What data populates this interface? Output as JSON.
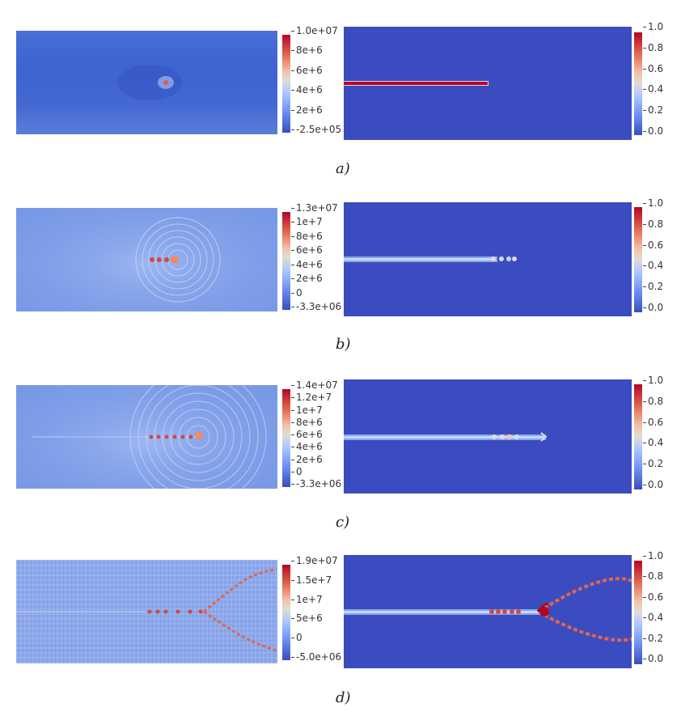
{
  "panels": [
    {
      "caption": "a)",
      "stress_ticks": [
        "1.0e+07",
        "8e+6",
        "6e+6",
        "4e+6",
        "2e+6",
        "-2.5e+05"
      ],
      "phase_ticks": [
        "1.0",
        "0.8",
        "0.6",
        "0.4",
        "0.2",
        "0.0"
      ]
    },
    {
      "caption": "b)",
      "stress_ticks": [
        "1.3e+07",
        "1e+7",
        "8e+6",
        "6e+6",
        "4e+6",
        "2e+6",
        "0",
        "-3.3e+06"
      ],
      "phase_ticks": [
        "1.0",
        "0.8",
        "0.6",
        "0.4",
        "0.2",
        "0.0"
      ]
    },
    {
      "caption": "c)",
      "stress_ticks": [
        "1.4e+07",
        "1.2e+7",
        "1e+7",
        "8e+6",
        "6e+6",
        "4e+6",
        "2e+6",
        "0",
        "-3.3e+06"
      ],
      "phase_ticks": [
        "1.0",
        "0.8",
        "0.6",
        "0.4",
        "0.2",
        "0.0"
      ]
    },
    {
      "caption": "d)",
      "stress_ticks": [
        "1.9e+07",
        "1.5e+7",
        "1e+7",
        "5e+6",
        "0",
        "-5.0e+06"
      ],
      "phase_ticks": [
        "1.0",
        "0.8",
        "0.6",
        "0.4",
        "0.2",
        "0.0"
      ]
    }
  ],
  "colors": {
    "field_blue": "#3b4cc0",
    "crack_red": "#b40426",
    "crack_white": "#dddcdc"
  }
}
